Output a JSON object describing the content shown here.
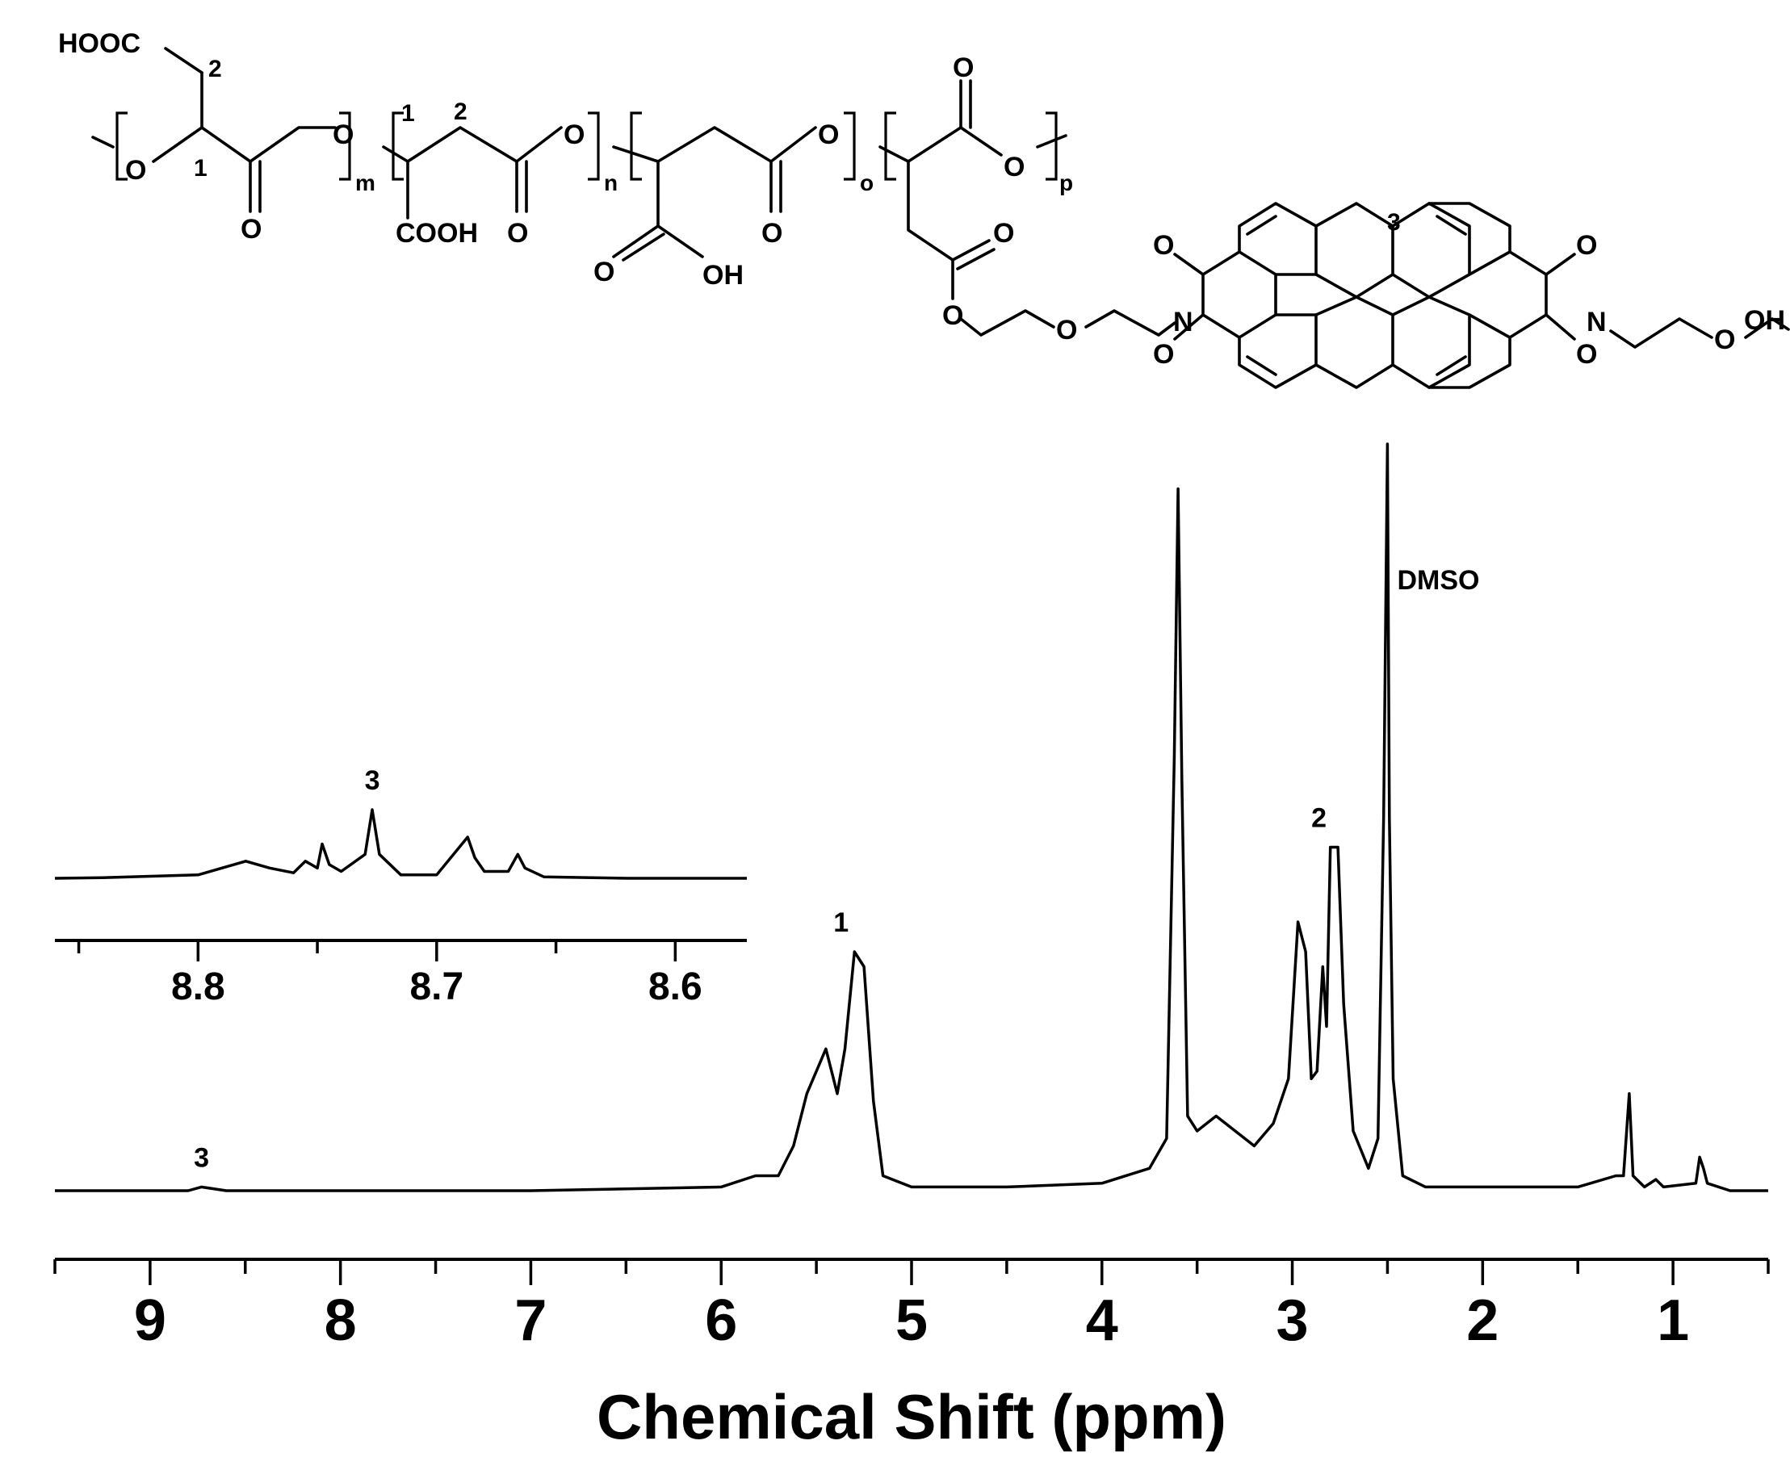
{
  "chart_data": [
    {
      "type": "line",
      "title": "",
      "xlabel": "Chemical Shift (ppm)",
      "ylabel": "",
      "xlim": [
        9.5,
        0.5
      ],
      "x_reversed": true,
      "grid": false,
      "legend": "none",
      "xticks": [
        "9",
        "8",
        "7",
        "6",
        "5",
        "4",
        "3",
        "2",
        "1"
      ],
      "series": [
        {
          "values": [
            [
              9.5,
              0.0
            ],
            [
              8.8,
              0.0
            ],
            [
              8.73,
              0.005
            ],
            [
              8.6,
              0.0
            ],
            [
              7.0,
              0.0
            ],
            [
              6.0,
              0.005
            ],
            [
              5.82,
              0.02
            ],
            [
              5.7,
              0.02
            ],
            [
              5.62,
              0.06
            ],
            [
              5.55,
              0.13
            ],
            [
              5.45,
              0.19
            ],
            [
              5.39,
              0.13
            ],
            [
              5.35,
              0.19
            ],
            [
              5.3,
              0.32
            ],
            [
              5.25,
              0.3
            ],
            [
              5.2,
              0.12
            ],
            [
              5.15,
              0.02
            ],
            [
              5.0,
              0.005
            ],
            [
              4.5,
              0.005
            ],
            [
              4.0,
              0.01
            ],
            [
              3.75,
              0.03
            ],
            [
              3.66,
              0.07
            ],
            [
              3.62,
              0.58
            ],
            [
              3.6,
              0.94
            ],
            [
              3.58,
              0.55
            ],
            [
              3.55,
              0.1
            ],
            [
              3.5,
              0.08
            ],
            [
              3.4,
              0.1
            ],
            [
              3.3,
              0.08
            ],
            [
              3.2,
              0.06
            ],
            [
              3.1,
              0.09
            ],
            [
              3.02,
              0.15
            ],
            [
              2.97,
              0.36
            ],
            [
              2.93,
              0.32
            ],
            [
              2.9,
              0.15
            ],
            [
              2.87,
              0.16
            ],
            [
              2.84,
              0.3
            ],
            [
              2.82,
              0.22
            ],
            [
              2.8,
              0.46
            ],
            [
              2.76,
              0.46
            ],
            [
              2.73,
              0.25
            ],
            [
              2.68,
              0.08
            ],
            [
              2.6,
              0.03
            ],
            [
              2.55,
              0.07
            ],
            [
              2.52,
              0.5
            ],
            [
              2.5,
              1.0
            ],
            [
              2.49,
              0.5
            ],
            [
              2.47,
              0.15
            ],
            [
              2.42,
              0.02
            ],
            [
              2.3,
              0.005
            ],
            [
              2.0,
              0.005
            ],
            [
              1.5,
              0.005
            ],
            [
              1.3,
              0.02
            ],
            [
              1.26,
              0.02
            ],
            [
              1.23,
              0.13
            ],
            [
              1.21,
              0.02
            ],
            [
              1.15,
              0.005
            ],
            [
              1.09,
              0.015
            ],
            [
              1.05,
              0.005
            ],
            [
              0.88,
              0.01
            ],
            [
              0.86,
              0.045
            ],
            [
              0.84,
              0.03
            ],
            [
              0.82,
              0.01
            ],
            [
              0.7,
              0.0
            ],
            [
              0.5,
              0.0
            ]
          ]
        }
      ],
      "annotations": [
        {
          "text": "3",
          "x": 8.73
        },
        {
          "text": "1",
          "x": 5.37
        },
        {
          "text": "2",
          "x": 2.86
        },
        {
          "text": "DMSO",
          "x": 2.5
        }
      ]
    },
    {
      "type": "line",
      "title": "",
      "xlabel": "",
      "ylabel": "",
      "xlim": [
        8.86,
        8.57
      ],
      "x_reversed": true,
      "xticks": [
        "8.8",
        "8.7",
        "8.6"
      ],
      "series": [
        {
          "values": [
            [
              8.86,
              0.0
            ],
            [
              8.84,
              0.01
            ],
            [
              8.8,
              0.05
            ],
            [
              8.78,
              0.25
            ],
            [
              8.77,
              0.15
            ],
            [
              8.76,
              0.08
            ],
            [
              8.755,
              0.25
            ],
            [
              8.75,
              0.15
            ],
            [
              8.748,
              0.5
            ],
            [
              8.745,
              0.2
            ],
            [
              8.74,
              0.1
            ],
            [
              8.73,
              0.35
            ],
            [
              8.727,
              1.0
            ],
            [
              8.724,
              0.35
            ],
            [
              8.715,
              0.05
            ],
            [
              8.7,
              0.05
            ],
            [
              8.687,
              0.6
            ],
            [
              8.684,
              0.3
            ],
            [
              8.68,
              0.1
            ],
            [
              8.67,
              0.1
            ],
            [
              8.666,
              0.35
            ],
            [
              8.663,
              0.15
            ],
            [
              8.655,
              0.02
            ],
            [
              8.62,
              0.0
            ],
            [
              8.57,
              0.0
            ]
          ]
        }
      ],
      "annotations": [
        {
          "text": "3",
          "x": 8.727
        }
      ]
    }
  ],
  "structure": {
    "labels": {
      "hooc": "HOOC",
      "two": "2",
      "one": "1",
      "three": "3",
      "o": "O",
      "n_atom": "N",
      "oh": "OH",
      "cooh": "COOH",
      "m": "m",
      "n": "n",
      "o_sub": "o",
      "p": "p"
    }
  }
}
